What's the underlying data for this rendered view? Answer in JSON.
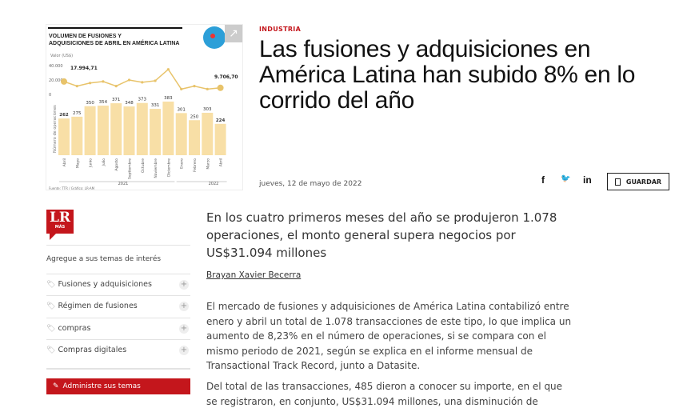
{
  "thumbnail": {
    "expand_icon": "arrow-up-right-icon",
    "chart_data": {
      "type": "bar+line",
      "title": "VOLUMEN DE FUSIONES Y ADQUISICIONES DE ABRIL EN AMÉRICA LATINA",
      "line_label": "Valor (US$)",
      "line_ticks": [
        "40.000",
        "20.000",
        "0"
      ],
      "ylim_line": [
        0,
        40000
      ],
      "bar_label": "Número de operaciones",
      "categories": [
        "Abril",
        "Mayo",
        "Junio",
        "Julio",
        "Agosto",
        "Septiembre",
        "Octubre",
        "Noviembre",
        "Diciembre",
        "Enero",
        "Febrero",
        "Marzo",
        "Abril"
      ],
      "bar_values": [
        262,
        275,
        350,
        354,
        371,
        348,
        373,
        331,
        383,
        301,
        250,
        303,
        224
      ],
      "line_values": [
        17994.71,
        12000,
        16000,
        18000,
        12000,
        20000,
        17000,
        19000,
        34000,
        8000,
        12000,
        8000,
        9706.7
      ],
      "line_first_label": "17.994,71",
      "line_last_label": "9.706,70",
      "years": [
        "2021",
        "2022"
      ],
      "source": "Fuente: TTR / Gráfico: LR-AM",
      "colors": {
        "bar": "#f8dfa6",
        "line": "#e8c36a"
      }
    }
  },
  "article": {
    "category": "INDUSTRIA",
    "headline": "Las fusiones y adquisiciones en América Latina han subido 8% en lo corrido del año",
    "date": "jueves, 12 de mayo de 2022",
    "share": {
      "facebook": "f",
      "twitter": "🐦",
      "linkedin": "in"
    },
    "save_label": "GUARDAR",
    "lead": "En los cuatro primeros meses del año se produjeron 1.078 operaciones, el monto general supera negocios por US$31.094 millones",
    "author": "Brayan Xavier Becerra",
    "paragraphs": [
      "El mercado de fusiones y adquisiciones de América Latina contabilizó entre enero y abril un total de 1.078 transacciones de este tipo, lo que implica un aumento de 8,23% en el número de operaciones, si se compara con el mismo periodo de 2021, según se explica en el informe mensual de Transactional Track Record, junto a Datasite.",
      "Del total de las transacciones, 485 dieron a conocer su importe, en el que se registraron, en conjunto, US$31.094 millones, una disminución de"
    ]
  },
  "sidebar": {
    "logo_text": "LR",
    "logo_sub": "MÁS",
    "add_label": "Agregue a sus temas de interés",
    "topics": [
      "Fusiones y adquisiciones",
      "Régimen de fusiones",
      "compras",
      "Compras digitales"
    ],
    "manage_label": "Administre sus temas",
    "accent": "#c4161c"
  }
}
